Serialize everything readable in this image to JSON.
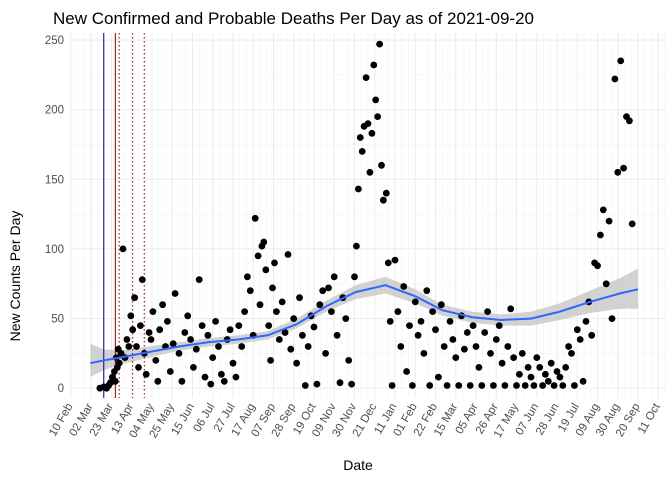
{
  "chart_data": {
    "type": "scatter",
    "title": "New Confirmed and Probable Deaths Per Day as of 2021-09-20",
    "xlabel": "Date",
    "ylabel": "New Counts Per Day",
    "ylim": [
      -7,
      255
    ],
    "yticks": [
      0,
      50,
      100,
      150,
      200,
      250
    ],
    "xlim": [
      "2020-02-09",
      "2021-10-19"
    ],
    "xticks": [
      {
        "date": "2020-02-10",
        "label": "10 Feb"
      },
      {
        "date": "2020-03-02",
        "label": "02 Mar"
      },
      {
        "date": "2020-03-23",
        "label": "23 Mar"
      },
      {
        "date": "2020-04-13",
        "label": "13 Apr"
      },
      {
        "date": "2020-05-04",
        "label": "04 May"
      },
      {
        "date": "2020-05-25",
        "label": "25 May"
      },
      {
        "date": "2020-06-15",
        "label": "15 Jun"
      },
      {
        "date": "2020-07-06",
        "label": "06 Jul"
      },
      {
        "date": "2020-07-27",
        "label": "27 Jul"
      },
      {
        "date": "2020-08-17",
        "label": "17 Aug"
      },
      {
        "date": "2020-09-07",
        "label": "07 Sep"
      },
      {
        "date": "2020-09-28",
        "label": "28 Sep"
      },
      {
        "date": "2020-10-19",
        "label": "19 Oct"
      },
      {
        "date": "2020-11-09",
        "label": "09 Nov"
      },
      {
        "date": "2020-11-30",
        "label": "30 Nov"
      },
      {
        "date": "2020-12-21",
        "label": "21 Dec"
      },
      {
        "date": "2021-01-11",
        "label": "11 Jan"
      },
      {
        "date": "2021-02-01",
        "label": "01 Feb"
      },
      {
        "date": "2021-02-22",
        "label": "22 Feb"
      },
      {
        "date": "2021-03-15",
        "label": "15 Mar"
      },
      {
        "date": "2021-04-05",
        "label": "05 Apr"
      },
      {
        "date": "2021-04-26",
        "label": "26 Apr"
      },
      {
        "date": "2021-05-17",
        "label": "17 May"
      },
      {
        "date": "2021-06-07",
        "label": "07 Jun"
      },
      {
        "date": "2021-06-28",
        "label": "28 Jun"
      },
      {
        "date": "2021-07-19",
        "label": "19 Jul"
      },
      {
        "date": "2021-08-09",
        "label": "09 Aug"
      },
      {
        "date": "2021-08-30",
        "label": "30 Aug"
      },
      {
        "date": "2021-09-20",
        "label": "20 Sep"
      },
      {
        "date": "2021-10-11",
        "label": "11 Oct"
      }
    ],
    "grid": true,
    "vlines": [
      {
        "date": "2020-03-15",
        "style": "solid",
        "color": "#00008b"
      },
      {
        "date": "2020-03-27",
        "style": "solid",
        "color": "#8b0000"
      },
      {
        "date": "2020-03-31",
        "style": "dotted",
        "color": "#8b0000"
      },
      {
        "date": "2020-04-14",
        "style": "dotted",
        "color": "#8b0000"
      },
      {
        "date": "2020-04-26",
        "style": "dotted",
        "color": "#8b0000"
      }
    ],
    "series": [
      {
        "color": "#000000",
        "points": [
          [
            "2020-03-11",
            0
          ],
          [
            "2020-03-15",
            1
          ],
          [
            "2020-03-18",
            0
          ],
          [
            "2020-03-20",
            2
          ],
          [
            "2020-03-22",
            4
          ],
          [
            "2020-03-24",
            8
          ],
          [
            "2020-03-26",
            12
          ],
          [
            "2020-03-27",
            5
          ],
          [
            "2020-03-28",
            22
          ],
          [
            "2020-03-29",
            15
          ],
          [
            "2020-03-30",
            28
          ],
          [
            "2020-03-31",
            18
          ],
          [
            "2020-04-02",
            25
          ],
          [
            "2020-04-04",
            100
          ],
          [
            "2020-04-06",
            22
          ],
          [
            "2020-04-08",
            35
          ],
          [
            "2020-04-10",
            30
          ],
          [
            "2020-04-12",
            52
          ],
          [
            "2020-04-14",
            42
          ],
          [
            "2020-04-16",
            65
          ],
          [
            "2020-04-18",
            30
          ],
          [
            "2020-04-20",
            15
          ],
          [
            "2020-04-22",
            45
          ],
          [
            "2020-04-24",
            78
          ],
          [
            "2020-04-26",
            25
          ],
          [
            "2020-04-28",
            10
          ],
          [
            "2020-05-01",
            40
          ],
          [
            "2020-05-03",
            35
          ],
          [
            "2020-05-05",
            55
          ],
          [
            "2020-05-08",
            20
          ],
          [
            "2020-05-10",
            5
          ],
          [
            "2020-05-12",
            42
          ],
          [
            "2020-05-15",
            60
          ],
          [
            "2020-05-18",
            30
          ],
          [
            "2020-05-20",
            48
          ],
          [
            "2020-05-23",
            12
          ],
          [
            "2020-05-26",
            32
          ],
          [
            "2020-05-28",
            68
          ],
          [
            "2020-06-01",
            25
          ],
          [
            "2020-06-04",
            5
          ],
          [
            "2020-06-07",
            40
          ],
          [
            "2020-06-10",
            52
          ],
          [
            "2020-06-13",
            35
          ],
          [
            "2020-06-16",
            15
          ],
          [
            "2020-06-19",
            28
          ],
          [
            "2020-06-22",
            78
          ],
          [
            "2020-06-25",
            45
          ],
          [
            "2020-06-28",
            8
          ],
          [
            "2020-07-01",
            38
          ],
          [
            "2020-07-04",
            3
          ],
          [
            "2020-07-06",
            22
          ],
          [
            "2020-07-09",
            48
          ],
          [
            "2020-07-12",
            30
          ],
          [
            "2020-07-15",
            10
          ],
          [
            "2020-07-18",
            5
          ],
          [
            "2020-07-21",
            35
          ],
          [
            "2020-07-24",
            42
          ],
          [
            "2020-07-27",
            18
          ],
          [
            "2020-07-30",
            8
          ],
          [
            "2020-08-02",
            45
          ],
          [
            "2020-08-05",
            30
          ],
          [
            "2020-08-08",
            55
          ],
          [
            "2020-08-11",
            80
          ],
          [
            "2020-08-14",
            70
          ],
          [
            "2020-08-17",
            38
          ],
          [
            "2020-08-19",
            122
          ],
          [
            "2020-08-22",
            95
          ],
          [
            "2020-08-24",
            60
          ],
          [
            "2020-08-26",
            102
          ],
          [
            "2020-08-28",
            105
          ],
          [
            "2020-08-30",
            85
          ],
          [
            "2020-09-02",
            45
          ],
          [
            "2020-09-04",
            20
          ],
          [
            "2020-09-06",
            72
          ],
          [
            "2020-09-08",
            90
          ],
          [
            "2020-09-10",
            55
          ],
          [
            "2020-09-13",
            35
          ],
          [
            "2020-09-16",
            62
          ],
          [
            "2020-09-19",
            40
          ],
          [
            "2020-09-22",
            96
          ],
          [
            "2020-09-25",
            28
          ],
          [
            "2020-09-28",
            50
          ],
          [
            "2020-10-01",
            18
          ],
          [
            "2020-10-04",
            65
          ],
          [
            "2020-10-07",
            38
          ],
          [
            "2020-10-10",
            2
          ],
          [
            "2020-10-13",
            30
          ],
          [
            "2020-10-16",
            52
          ],
          [
            "2020-10-19",
            44
          ],
          [
            "2020-10-22",
            3
          ],
          [
            "2020-10-25",
            60
          ],
          [
            "2020-10-28",
            70
          ],
          [
            "2020-10-31",
            25
          ],
          [
            "2020-11-03",
            72
          ],
          [
            "2020-11-06",
            55
          ],
          [
            "2020-11-09",
            80
          ],
          [
            "2020-11-12",
            38
          ],
          [
            "2020-11-15",
            4
          ],
          [
            "2020-11-18",
            65
          ],
          [
            "2020-11-21",
            50
          ],
          [
            "2020-11-24",
            20
          ],
          [
            "2020-11-27",
            3
          ],
          [
            "2020-11-30",
            80
          ],
          [
            "2020-12-02",
            102
          ],
          [
            "2020-12-04",
            143
          ],
          [
            "2020-12-06",
            180
          ],
          [
            "2020-12-08",
            170
          ],
          [
            "2020-12-10",
            188
          ],
          [
            "2020-12-12",
            223
          ],
          [
            "2020-12-14",
            190
          ],
          [
            "2020-12-16",
            155
          ],
          [
            "2020-12-18",
            183
          ],
          [
            "2020-12-20",
            232
          ],
          [
            "2020-12-22",
            207
          ],
          [
            "2020-12-24",
            195
          ],
          [
            "2020-12-26",
            247
          ],
          [
            "2020-12-28",
            160
          ],
          [
            "2020-12-30",
            135
          ],
          [
            "2021-01-02",
            140
          ],
          [
            "2021-01-04",
            90
          ],
          [
            "2021-01-06",
            48
          ],
          [
            "2021-01-08",
            2
          ],
          [
            "2021-01-11",
            92
          ],
          [
            "2021-01-14",
            55
          ],
          [
            "2021-01-17",
            30
          ],
          [
            "2021-01-20",
            73
          ],
          [
            "2021-01-23",
            12
          ],
          [
            "2021-01-26",
            45
          ],
          [
            "2021-01-29",
            2
          ],
          [
            "2021-02-01",
            62
          ],
          [
            "2021-02-04",
            38
          ],
          [
            "2021-02-07",
            48
          ],
          [
            "2021-02-10",
            25
          ],
          [
            "2021-02-13",
            70
          ],
          [
            "2021-02-16",
            2
          ],
          [
            "2021-02-19",
            55
          ],
          [
            "2021-02-22",
            42
          ],
          [
            "2021-02-25",
            8
          ],
          [
            "2021-02-28",
            60
          ],
          [
            "2021-03-03",
            30
          ],
          [
            "2021-03-06",
            2
          ],
          [
            "2021-03-09",
            48
          ],
          [
            "2021-03-12",
            35
          ],
          [
            "2021-03-15",
            22
          ],
          [
            "2021-03-18",
            2
          ],
          [
            "2021-03-21",
            52
          ],
          [
            "2021-03-24",
            28
          ],
          [
            "2021-03-27",
            40
          ],
          [
            "2021-03-30",
            2
          ],
          [
            "2021-04-02",
            45
          ],
          [
            "2021-04-05",
            30
          ],
          [
            "2021-04-08",
            15
          ],
          [
            "2021-04-11",
            2
          ],
          [
            "2021-04-14",
            40
          ],
          [
            "2021-04-17",
            55
          ],
          [
            "2021-04-20",
            25
          ],
          [
            "2021-04-23",
            2
          ],
          [
            "2021-04-26",
            35
          ],
          [
            "2021-04-29",
            45
          ],
          [
            "2021-05-02",
            18
          ],
          [
            "2021-05-05",
            2
          ],
          [
            "2021-05-08",
            30
          ],
          [
            "2021-05-11",
            57
          ],
          [
            "2021-05-14",
            22
          ],
          [
            "2021-05-17",
            2
          ],
          [
            "2021-05-20",
            10
          ],
          [
            "2021-05-23",
            25
          ],
          [
            "2021-05-26",
            2
          ],
          [
            "2021-05-29",
            15
          ],
          [
            "2021-06-01",
            8
          ],
          [
            "2021-06-04",
            2
          ],
          [
            "2021-06-07",
            22
          ],
          [
            "2021-06-10",
            15
          ],
          [
            "2021-06-13",
            2
          ],
          [
            "2021-06-16",
            10
          ],
          [
            "2021-06-19",
            5
          ],
          [
            "2021-06-22",
            18
          ],
          [
            "2021-06-25",
            2
          ],
          [
            "2021-06-28",
            12
          ],
          [
            "2021-07-01",
            8
          ],
          [
            "2021-07-04",
            2
          ],
          [
            "2021-07-07",
            15
          ],
          [
            "2021-07-10",
            30
          ],
          [
            "2021-07-13",
            25
          ],
          [
            "2021-07-16",
            2
          ],
          [
            "2021-07-19",
            42
          ],
          [
            "2021-07-22",
            35
          ],
          [
            "2021-07-25",
            5
          ],
          [
            "2021-07-28",
            48
          ],
          [
            "2021-07-31",
            62
          ],
          [
            "2021-08-03",
            38
          ],
          [
            "2021-08-06",
            90
          ],
          [
            "2021-08-09",
            88
          ],
          [
            "2021-08-12",
            110
          ],
          [
            "2021-08-15",
            128
          ],
          [
            "2021-08-18",
            75
          ],
          [
            "2021-08-21",
            120
          ],
          [
            "2021-08-24",
            50
          ],
          [
            "2021-08-27",
            222
          ],
          [
            "2021-08-30",
            155
          ],
          [
            "2021-09-02",
            235
          ],
          [
            "2021-09-05",
            158
          ],
          [
            "2021-09-08",
            195
          ],
          [
            "2021-09-11",
            192
          ],
          [
            "2021-09-14",
            118
          ]
        ]
      }
    ],
    "smooth": {
      "color": "#3366ff",
      "band_color": "#bfbfbf",
      "points": [
        {
          "date": "2020-03-01",
          "y": 18,
          "lo": 8,
          "hi": 32
        },
        {
          "date": "2020-03-15",
          "y": 20,
          "lo": 13,
          "hi": 28
        },
        {
          "date": "2020-04-01",
          "y": 22,
          "lo": 17,
          "hi": 27
        },
        {
          "date": "2020-05-01",
          "y": 26,
          "lo": 22,
          "hi": 30
        },
        {
          "date": "2020-06-01",
          "y": 30,
          "lo": 27,
          "hi": 33
        },
        {
          "date": "2020-07-01",
          "y": 33,
          "lo": 30,
          "hi": 36
        },
        {
          "date": "2020-08-01",
          "y": 35,
          "lo": 32,
          "hi": 38
        },
        {
          "date": "2020-09-01",
          "y": 38,
          "lo": 35,
          "hi": 41
        },
        {
          "date": "2020-10-01",
          "y": 46,
          "lo": 43,
          "hi": 50
        },
        {
          "date": "2020-11-01",
          "y": 59,
          "lo": 55,
          "hi": 63
        },
        {
          "date": "2020-12-01",
          "y": 69,
          "lo": 64,
          "hi": 74
        },
        {
          "date": "2021-01-01",
          "y": 74,
          "lo": 68,
          "hi": 80
        },
        {
          "date": "2021-02-01",
          "y": 66,
          "lo": 61,
          "hi": 71
        },
        {
          "date": "2021-03-01",
          "y": 56,
          "lo": 52,
          "hi": 60
        },
        {
          "date": "2021-04-01",
          "y": 51,
          "lo": 47,
          "hi": 55
        },
        {
          "date": "2021-05-01",
          "y": 49,
          "lo": 45,
          "hi": 53
        },
        {
          "date": "2021-06-01",
          "y": 50,
          "lo": 45,
          "hi": 55
        },
        {
          "date": "2021-07-01",
          "y": 55,
          "lo": 49,
          "hi": 61
        },
        {
          "date": "2021-08-01",
          "y": 62,
          "lo": 54,
          "hi": 70
        },
        {
          "date": "2021-09-01",
          "y": 68,
          "lo": 57,
          "hi": 79
        },
        {
          "date": "2021-09-20",
          "y": 71,
          "lo": 57,
          "hi": 86
        }
      ]
    }
  }
}
